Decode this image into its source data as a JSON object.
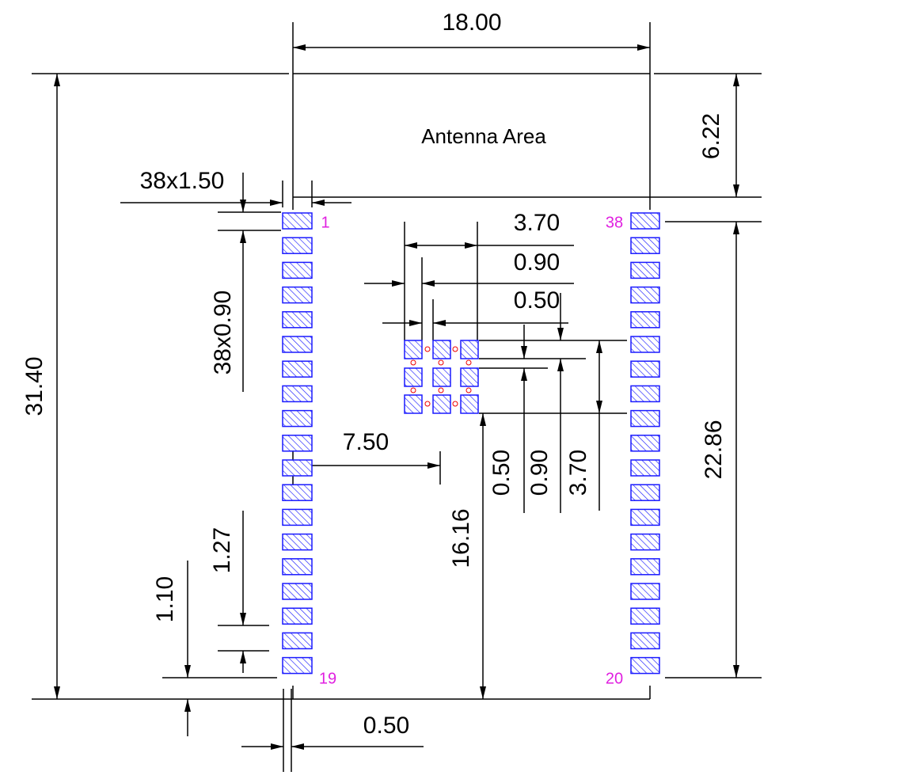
{
  "area_label": "Antenna Area",
  "dimensions": [
    "18.00",
    "31.40",
    "6.22",
    "38x1.50",
    "38x0.90",
    "3.70",
    "0.90",
    "0.50",
    "22.86",
    "7.50",
    "0.50",
    "0.90",
    "3.70",
    "16.16",
    "1.27",
    "1.10",
    "0.50"
  ],
  "pin_labels": [
    "1",
    "38",
    "19",
    "20"
  ]
}
